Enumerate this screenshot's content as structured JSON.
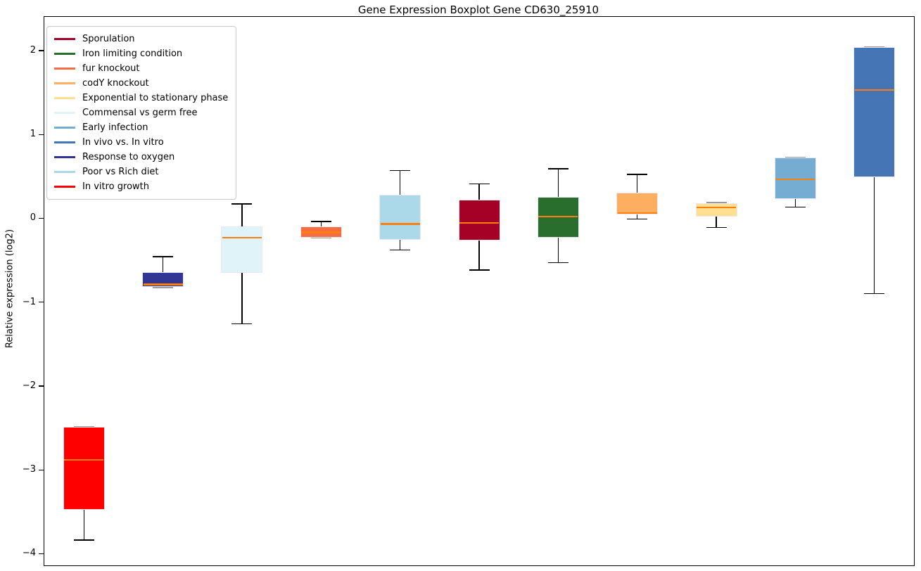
{
  "title": "Gene Expression Boxplot Gene CD630_25910",
  "y_axis": {
    "label": "Relative expression (log2)",
    "tick_labels": [
      "2",
      "1",
      "0",
      "−1",
      "−2",
      "−3",
      "−4"
    ],
    "tick_values": [
      2,
      1,
      0,
      -1,
      -2,
      -3,
      -4
    ]
  },
  "legend": {
    "entries": [
      {
        "label": "Sporulation",
        "color": "#a50026"
      },
      {
        "label": "Iron limiting condition",
        "color": "#2a6e2d"
      },
      {
        "label": "fur knockout",
        "color": "#f46d43"
      },
      {
        "label": "codY knockout",
        "color": "#fdae61"
      },
      {
        "label": "Exponential to stationary phase",
        "color": "#fee090"
      },
      {
        "label": "Commensal vs germ free",
        "color": "#e0f3f8"
      },
      {
        "label": "Early infection",
        "color": "#74add1"
      },
      {
        "label": "In vivo vs. In vitro",
        "color": "#4575b4"
      },
      {
        "label": "Response to oxygen",
        "color": "#313695"
      },
      {
        "label": "Poor vs Rich diet",
        "color": "#abd9e9"
      },
      {
        "label": "In vitro growth",
        "color": "#ff0000"
      }
    ]
  },
  "chart_data": {
    "type": "boxplot",
    "title": "Gene Expression Boxplot Gene CD630_25910",
    "xlabel": "",
    "ylabel": "Relative expression (log2)",
    "ylim": [
      -4.13,
      2.41
    ],
    "grid": false,
    "legend_position": "upper left",
    "median_color": "#ff7f0e",
    "whisker_color": "#000000",
    "box_edge_color": "#e9e9f5",
    "series": [
      {
        "name": "In vitro growth",
        "color": "#ff0000",
        "whislo": -3.83,
        "q1": -3.47,
        "med": -2.87,
        "q3": -2.48,
        "whishi": -2.48
      },
      {
        "name": "Response to oxygen",
        "color": "#313695",
        "whislo": -0.82,
        "q1": -0.81,
        "med": -0.78,
        "q3": -0.63,
        "whishi": -0.45
      },
      {
        "name": "Commensal vs germ free",
        "color": "#e0f3f8",
        "whislo": -1.25,
        "q1": -0.64,
        "med": -0.22,
        "q3": -0.09,
        "whishi": 0.18
      },
      {
        "name": "fur knockout",
        "color": "#f46d43",
        "whislo": -0.23,
        "q1": -0.22,
        "med": -0.16,
        "q3": -0.09,
        "whishi": -0.03
      },
      {
        "name": "Poor vs Rich diet",
        "color": "#abd9e9",
        "whislo": -0.37,
        "q1": -0.25,
        "med": -0.06,
        "q3": 0.29,
        "whishi": 0.58
      },
      {
        "name": "Sporulation",
        "color": "#a50026",
        "whislo": -0.61,
        "q1": -0.26,
        "med": -0.05,
        "q3": 0.23,
        "whishi": 0.42
      },
      {
        "name": "Iron limiting condition",
        "color": "#2a6e2d",
        "whislo": -0.52,
        "q1": -0.22,
        "med": 0.03,
        "q3": 0.26,
        "whishi": 0.6
      },
      {
        "name": "codY knockout",
        "color": "#fdae61",
        "whislo": 0.0,
        "q1": 0.05,
        "med": 0.07,
        "q3": 0.31,
        "whishi": 0.53
      },
      {
        "name": "Exponential to stationary phase",
        "color": "#fee090",
        "whislo": -0.1,
        "q1": 0.03,
        "med": 0.14,
        "q3": 0.19,
        "whishi": 0.2
      },
      {
        "name": "Early infection",
        "color": "#74add1",
        "whislo": 0.14,
        "q1": 0.24,
        "med": 0.47,
        "q3": 0.73,
        "whishi": 0.74
      },
      {
        "name": "In vivo vs. In vitro",
        "color": "#4575b4",
        "whislo": -0.89,
        "q1": 0.5,
        "med": 1.54,
        "q3": 2.05,
        "whishi": 2.05
      }
    ]
  }
}
